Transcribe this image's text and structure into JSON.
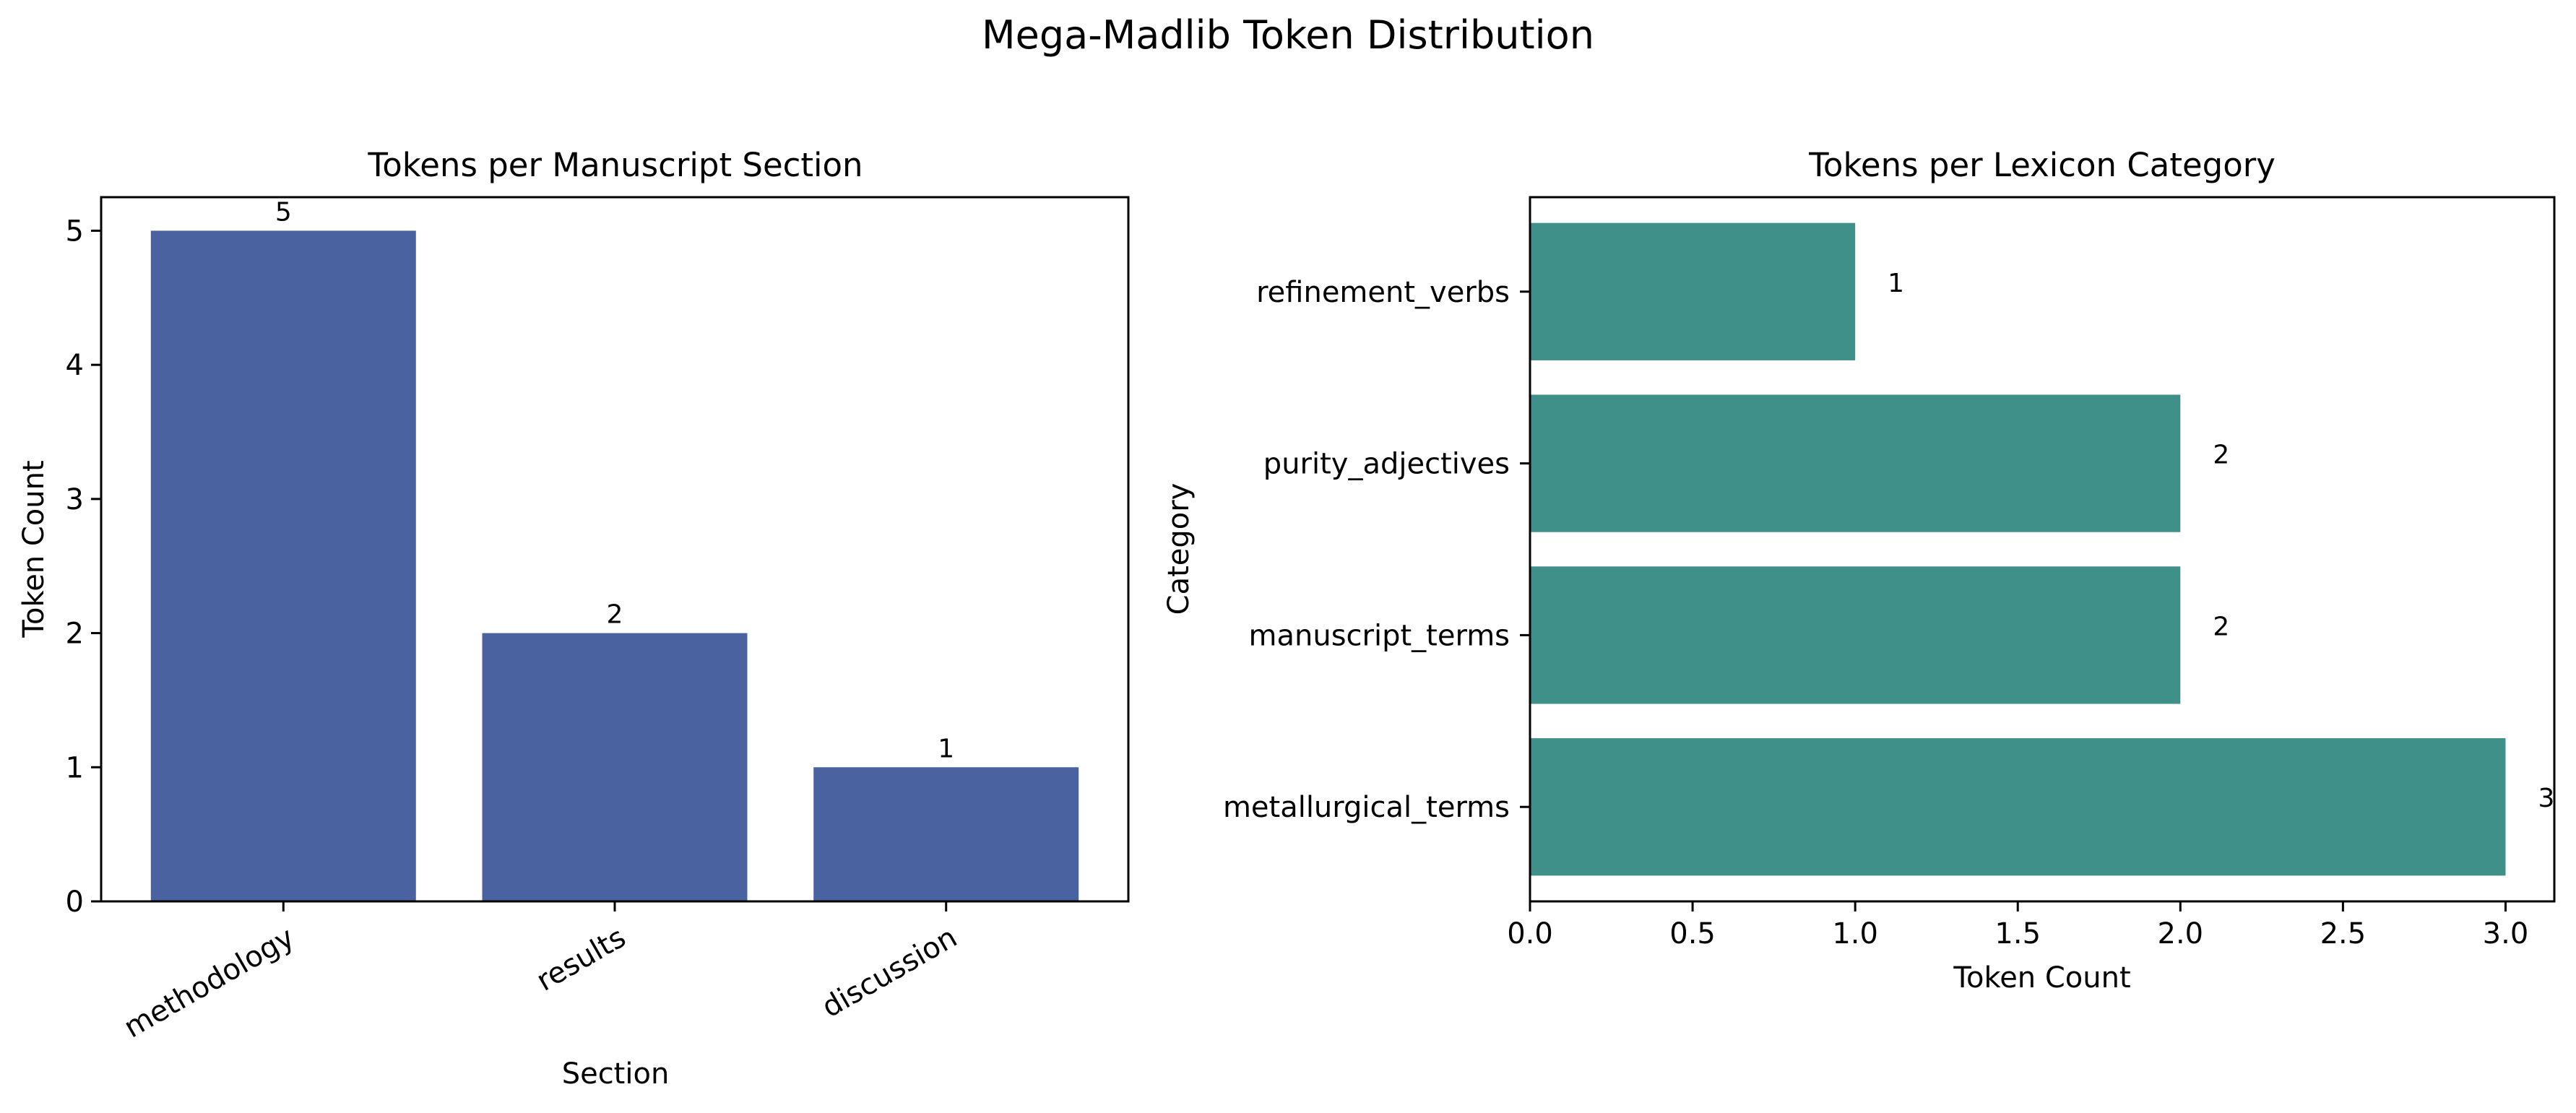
{
  "figure": {
    "title": "Mega-Madlib Token Distribution"
  },
  "chart_data": [
    {
      "type": "bar",
      "orientation": "vertical",
      "title": "Tokens per Manuscript Section",
      "xlabel": "Section",
      "ylabel": "Token Count",
      "categories": [
        "methodology",
        "results",
        "discussion"
      ],
      "values": [
        5,
        2,
        1
      ],
      "value_labels": [
        "5",
        "2",
        "1"
      ],
      "ylim": [
        0,
        5.25
      ],
      "yticks": [
        0,
        1,
        2,
        3,
        4,
        5
      ],
      "ytick_labels": [
        "0",
        "1",
        "2",
        "3",
        "4",
        "5"
      ],
      "tick_label_rotation": -30,
      "color": "#4a62a0",
      "grid": false,
      "legend": "none"
    },
    {
      "type": "bar",
      "orientation": "horizontal",
      "title": "Tokens per Lexicon Category",
      "xlabel": "Token Count",
      "ylabel": "Category",
      "categories": [
        "metallurgical_terms",
        "manuscript_terms",
        "purity_adjectives",
        "refinement_verbs"
      ],
      "values": [
        3,
        2,
        2,
        1
      ],
      "value_labels": [
        "3",
        "2",
        "2",
        "1"
      ],
      "xlim": [
        0,
        3.15
      ],
      "xticks": [
        0,
        0.5,
        1,
        1.5,
        2,
        2.5,
        3
      ],
      "xtick_labels": [
        "0.0",
        "0.5",
        "1.0",
        "1.5",
        "2.0",
        "2.5",
        "3.0"
      ],
      "color": "#40908a",
      "grid": false,
      "legend": "none"
    }
  ]
}
